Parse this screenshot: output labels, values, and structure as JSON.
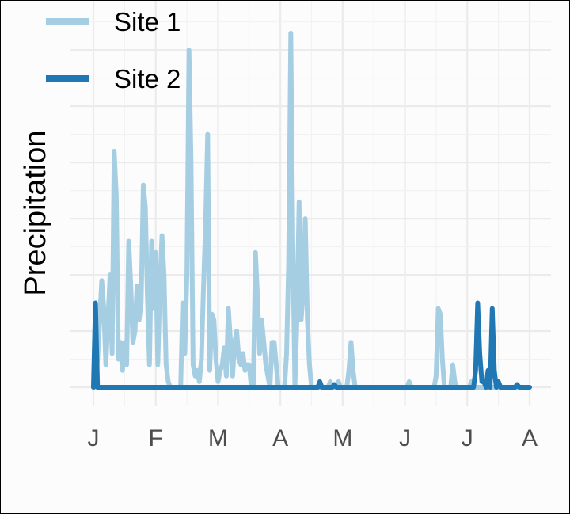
{
  "chart_data": {
    "type": "line",
    "title": "",
    "xlabel": "",
    "ylabel": "Precipitation",
    "x_tick_labels": [
      "J",
      "F",
      "M",
      "A",
      "M",
      "J",
      "J",
      "A"
    ],
    "xlim": [
      0,
      210
    ],
    "ylim": [
      0,
      6.2
    ],
    "y_ticks_shown": false,
    "grid": true,
    "legend_position": "top-left",
    "series": [
      {
        "name": "Site 1",
        "color": "#a6cee3",
        "points": [
          [
            0,
            0
          ],
          [
            1,
            0
          ],
          [
            2,
            0.5
          ],
          [
            3,
            1.2
          ],
          [
            4,
            1.9
          ],
          [
            5,
            1.4
          ],
          [
            6,
            0.4
          ],
          [
            7,
            1.2
          ],
          [
            8,
            2.0
          ],
          [
            9,
            0.6
          ],
          [
            10,
            4.2
          ],
          [
            11,
            3.4
          ],
          [
            12,
            0.5
          ],
          [
            13,
            0.8
          ],
          [
            14,
            0.3
          ],
          [
            15,
            0.8
          ],
          [
            16,
            0.4
          ],
          [
            17,
            2.6
          ],
          [
            18,
            1.8
          ],
          [
            19,
            0.8
          ],
          [
            20,
            1.0
          ],
          [
            21,
            1.8
          ],
          [
            22,
            1.2
          ],
          [
            23,
            1.5
          ],
          [
            24,
            3.6
          ],
          [
            25,
            3.2
          ],
          [
            26,
            1.6
          ],
          [
            27,
            0.4
          ],
          [
            28,
            2.6
          ],
          [
            29,
            1.4
          ],
          [
            30,
            2.4
          ],
          [
            31,
            0.4
          ],
          [
            32,
            1.8
          ],
          [
            33,
            2.7
          ],
          [
            34,
            2.0
          ],
          [
            35,
            0.4
          ],
          [
            36,
            0.1
          ],
          [
            37,
            0
          ],
          [
            38,
            0
          ],
          [
            39,
            0
          ],
          [
            40,
            0
          ],
          [
            41,
            0
          ],
          [
            42,
            0
          ],
          [
            43,
            1.5
          ],
          [
            44,
            0.6
          ],
          [
            45,
            2.0
          ],
          [
            46,
            6.0
          ],
          [
            47,
            4.0
          ],
          [
            48,
            0.4
          ],
          [
            49,
            0.2
          ],
          [
            50,
            0.3
          ],
          [
            51,
            0.1
          ],
          [
            52,
            0.5
          ],
          [
            53,
            1.8
          ],
          [
            54,
            2.9
          ],
          [
            55,
            4.5
          ],
          [
            56,
            0.3
          ],
          [
            57,
            1.3
          ],
          [
            58,
            1.2
          ],
          [
            59,
            0.5
          ],
          [
            60,
            0.1
          ],
          [
            61,
            0.3
          ],
          [
            62,
            0.4
          ],
          [
            63,
            0.7
          ],
          [
            64,
            0.2
          ],
          [
            65,
            1.4
          ],
          [
            66,
            0.8
          ],
          [
            67,
            0.2
          ],
          [
            68,
            0.8
          ],
          [
            69,
            1.0
          ],
          [
            70,
            0.5
          ],
          [
            71,
            0.4
          ],
          [
            72,
            0.6
          ],
          [
            73,
            0.3
          ],
          [
            74,
            0.4
          ],
          [
            75,
            0.4
          ],
          [
            76,
            0
          ],
          [
            77,
            0
          ],
          [
            78,
            2.4
          ],
          [
            79,
            1.6
          ],
          [
            80,
            0.6
          ],
          [
            81,
            1.2
          ],
          [
            82,
            0.8
          ],
          [
            83,
            0.4
          ],
          [
            84,
            0.2
          ],
          [
            85,
            0
          ],
          [
            86,
            0.8
          ],
          [
            87,
            0.8
          ],
          [
            88,
            0.4
          ],
          [
            89,
            0
          ],
          [
            90,
            0
          ],
          [
            91,
            0
          ],
          [
            92,
            0
          ],
          [
            93,
            0.6
          ],
          [
            94,
            2.2
          ],
          [
            95,
            6.3
          ],
          [
            96,
            2.6
          ],
          [
            97,
            0
          ],
          [
            98,
            1.2
          ],
          [
            99,
            3.3
          ],
          [
            100,
            1.2
          ],
          [
            101,
            1.7
          ],
          [
            102,
            3.0
          ],
          [
            103,
            1.2
          ],
          [
            104,
            0.4
          ],
          [
            105,
            0
          ],
          [
            106,
            0
          ],
          [
            107,
            0
          ],
          [
            108,
            0
          ],
          [
            109,
            0
          ],
          [
            110,
            0
          ],
          [
            111,
            0
          ],
          [
            112,
            0
          ],
          [
            113,
            0
          ],
          [
            114,
            0.1
          ],
          [
            115,
            0
          ],
          [
            116,
            0
          ],
          [
            117,
            0
          ],
          [
            118,
            0.1
          ],
          [
            119,
            0
          ],
          [
            120,
            0
          ],
          [
            121,
            0
          ],
          [
            122,
            0
          ],
          [
            123,
            0.3
          ],
          [
            124,
            0.8
          ],
          [
            125,
            0.3
          ],
          [
            126,
            0
          ],
          [
            127,
            0
          ],
          [
            128,
            0
          ],
          [
            129,
            0
          ],
          [
            130,
            0
          ],
          [
            140,
            0
          ],
          [
            150,
            0
          ],
          [
            151,
            0
          ],
          [
            152,
            0.1
          ],
          [
            153,
            0
          ],
          [
            154,
            0
          ],
          [
            155,
            0
          ],
          [
            156,
            0
          ],
          [
            157,
            0
          ],
          [
            158,
            0
          ],
          [
            159,
            0
          ],
          [
            160,
            0
          ],
          [
            161,
            0
          ],
          [
            162,
            0
          ],
          [
            163,
            0
          ],
          [
            164,
            0
          ],
          [
            165,
            0.2
          ],
          [
            166,
            1.4
          ],
          [
            167,
            1.3
          ],
          [
            168,
            0.5
          ],
          [
            169,
            0
          ],
          [
            170,
            0
          ],
          [
            171,
            0
          ],
          [
            172,
            0
          ],
          [
            173,
            0.4
          ],
          [
            174,
            0.1
          ],
          [
            175,
            0
          ],
          [
            176,
            0
          ],
          [
            177,
            0
          ],
          [
            178,
            0
          ],
          [
            179,
            0
          ],
          [
            180,
            0
          ],
          [
            181,
            0
          ],
          [
            182,
            0.1
          ],
          [
            183,
            0
          ],
          [
            184,
            0
          ],
          [
            185,
            0
          ],
          [
            190,
            0
          ],
          [
            200,
            0
          ],
          [
            210,
            0
          ]
        ]
      },
      {
        "name": "Site 2",
        "color": "#1f78b4",
        "points": [
          [
            0,
            0
          ],
          [
            1,
            1.5
          ],
          [
            2,
            0
          ],
          [
            3,
            0
          ],
          [
            10,
            0
          ],
          [
            20,
            0
          ],
          [
            30,
            0
          ],
          [
            40,
            0
          ],
          [
            50,
            0
          ],
          [
            60,
            0
          ],
          [
            70,
            0
          ],
          [
            80,
            0
          ],
          [
            90,
            0
          ],
          [
            100,
            0
          ],
          [
            108,
            0
          ],
          [
            109,
            0.1
          ],
          [
            110,
            0
          ],
          [
            115,
            0
          ],
          [
            116,
            0.05
          ],
          [
            117,
            0
          ],
          [
            120,
            0
          ],
          [
            130,
            0
          ],
          [
            140,
            0
          ],
          [
            150,
            0
          ],
          [
            160,
            0
          ],
          [
            170,
            0
          ],
          [
            180,
            0
          ],
          [
            183,
            0
          ],
          [
            184,
            0.3
          ],
          [
            185,
            1.5
          ],
          [
            186,
            0.6
          ],
          [
            187,
            0.1
          ],
          [
            188,
            0.1
          ],
          [
            189,
            0
          ],
          [
            190,
            0.3
          ],
          [
            191,
            0
          ],
          [
            192,
            1.4
          ],
          [
            193,
            0.3
          ],
          [
            194,
            0
          ],
          [
            195,
            0.1
          ],
          [
            196,
            0
          ],
          [
            200,
            0
          ],
          [
            203,
            0
          ],
          [
            204,
            0.05
          ],
          [
            205,
            0
          ],
          [
            210,
            0
          ]
        ]
      }
    ]
  }
}
